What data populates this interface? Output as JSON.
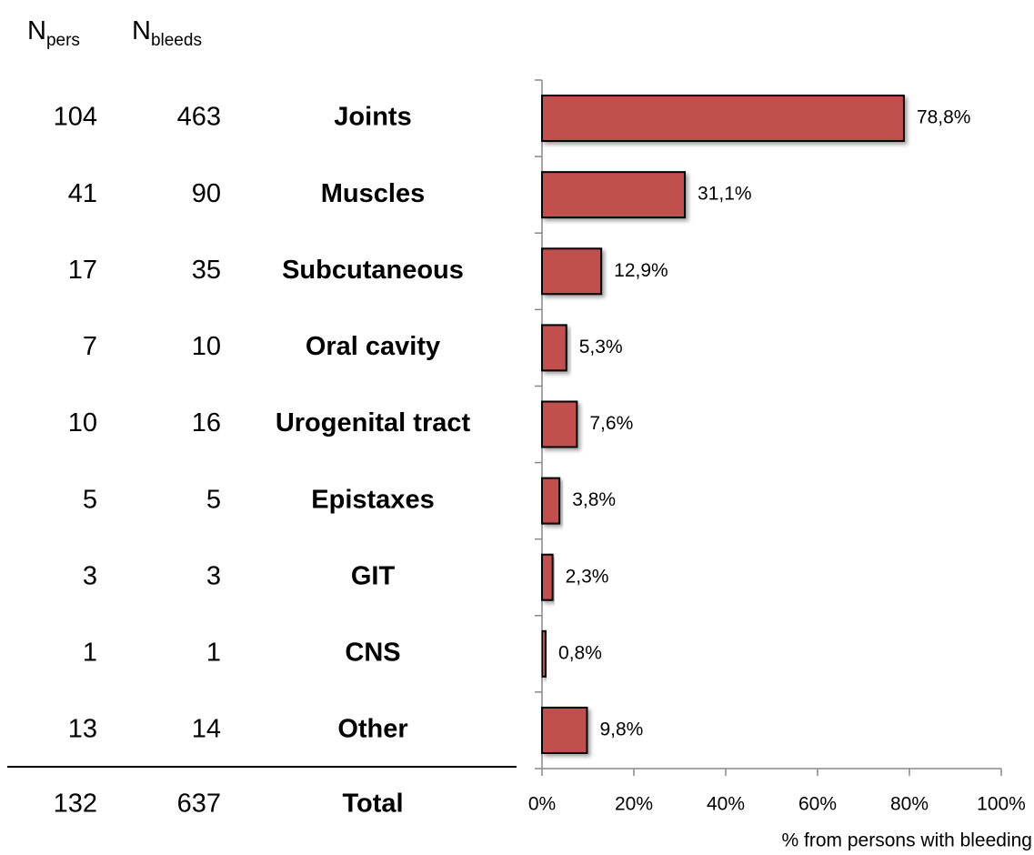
{
  "chart_data": {
    "type": "bar",
    "orientation": "horizontal",
    "columns": [
      {
        "main": "N",
        "sub": "pers"
      },
      {
        "main": "N",
        "sub": "bleeds"
      }
    ],
    "categories": [
      "Joints",
      "Muscles",
      "Subcutaneous",
      "Oral cavity",
      "Urogenital tract",
      "Epistaxes",
      "GIT",
      "CNS",
      "Other"
    ],
    "n_pers": [
      104,
      41,
      17,
      7,
      10,
      5,
      3,
      1,
      13
    ],
    "n_bleeds": [
      463,
      90,
      35,
      10,
      16,
      5,
      3,
      1,
      14
    ],
    "values": [
      78.8,
      31.1,
      12.9,
      5.3,
      7.6,
      3.8,
      2.3,
      0.8,
      9.8
    ],
    "value_labels": [
      "78,8%",
      "31,1%",
      "12,9%",
      "5,3%",
      "7,6%",
      "3,8%",
      "2,3%",
      "0,8%",
      "9,8%"
    ],
    "color": "#c0504d",
    "total": {
      "label": "Total",
      "n_pers": 132,
      "n_bleeds": 637
    },
    "xlim": [
      0,
      100
    ],
    "xticks": [
      {
        "value": 0,
        "label": "0%"
      },
      {
        "value": 20,
        "label": "20%"
      },
      {
        "value": 40,
        "label": "40%"
      },
      {
        "value": 60,
        "label": "60%"
      },
      {
        "value": 80,
        "label": "80%"
      },
      {
        "value": 100,
        "label": "100%"
      }
    ],
    "xlabel": "% from persons with bleeding"
  }
}
